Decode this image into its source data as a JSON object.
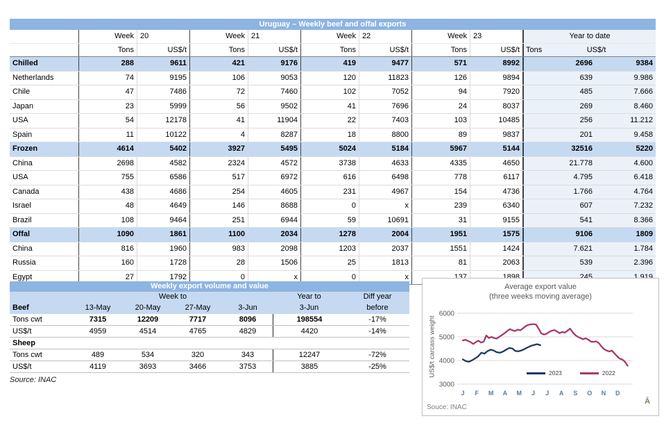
{
  "theme": {
    "bar": "#8DB4E2",
    "hdr": "#C5D9F1",
    "sec": "#C5D9F1",
    "ytd": "#EAF1F9",
    "sepd": "#404040",
    "sepl": "#D9D9D9"
  },
  "table1": {
    "title": "Uruguay – Weekly beef and offal exports",
    "weeks": [
      {
        "word": "Week",
        "num": "20"
      },
      {
        "word": "Week",
        "num": "21"
      },
      {
        "word": "Week",
        "num": "22"
      },
      {
        "word": "Week",
        "num": "23"
      }
    ],
    "ytd_label": "Year to date",
    "col_tons": "Tons",
    "col_usd": "US$/t",
    "rows": [
      {
        "label": "Chilled",
        "bold": true,
        "values": [
          "288",
          "9611",
          "421",
          "9176",
          "419",
          "9477",
          "571",
          "8992",
          "2696",
          "9384"
        ]
      },
      {
        "label": "Netherlands",
        "values": [
          "74",
          "9195",
          "106",
          "9053",
          "120",
          "11823",
          "126",
          "9894",
          "639",
          "9.986"
        ]
      },
      {
        "label": "Chile",
        "values": [
          "47",
          "7486",
          "72",
          "7460",
          "102",
          "7052",
          "94",
          "7920",
          "485",
          "7.666"
        ]
      },
      {
        "label": "Japan",
        "values": [
          "23",
          "5999",
          "56",
          "9502",
          "41",
          "7696",
          "24",
          "8037",
          "269",
          "8.460"
        ]
      },
      {
        "label": "USA",
        "values": [
          "54",
          "12178",
          "41",
          "11904",
          "22",
          "7403",
          "103",
          "10485",
          "256",
          "11.212"
        ]
      },
      {
        "label": "Spain",
        "values": [
          "11",
          "10122",
          "4",
          "8287",
          "18",
          "8800",
          "89",
          "9837",
          "201",
          "9.458"
        ]
      },
      {
        "label": "Frozen",
        "bold": true,
        "values": [
          "4614",
          "5402",
          "3927",
          "5495",
          "5024",
          "5184",
          "5967",
          "5144",
          "32516",
          "5220"
        ]
      },
      {
        "label": "China",
        "values": [
          "2698",
          "4582",
          "2324",
          "4572",
          "3738",
          "4633",
          "4335",
          "4650",
          "21.778",
          "4.600"
        ]
      },
      {
        "label": "USA",
        "values": [
          "755",
          "6586",
          "517",
          "6972",
          "616",
          "6498",
          "778",
          "6117",
          "4.795",
          "6.418"
        ]
      },
      {
        "label": "Canada",
        "values": [
          "438",
          "4686",
          "254",
          "4605",
          "231",
          "4967",
          "154",
          "4736",
          "1.766",
          "4.764"
        ]
      },
      {
        "label": "Israel",
        "values": [
          "48",
          "4649",
          "146",
          "8688",
          "0",
          "x",
          "239",
          "6340",
          "607",
          "7.232"
        ]
      },
      {
        "label": "Brazil",
        "values": [
          "108",
          "9464",
          "251",
          "6944",
          "59",
          "10691",
          "31",
          "9155",
          "541",
          "8.366"
        ]
      },
      {
        "label": "Offal",
        "bold": true,
        "values": [
          "1090",
          "1861",
          "1100",
          "2034",
          "1278",
          "2004",
          "1951",
          "1575",
          "9106",
          "1809"
        ]
      },
      {
        "label": "China",
        "values": [
          "816",
          "1960",
          "983",
          "2098",
          "1203",
          "2037",
          "1551",
          "1424",
          "7.621",
          "1.784"
        ]
      },
      {
        "label": "Russia",
        "values": [
          "160",
          "1728",
          "28",
          "1506",
          "25",
          "1813",
          "81",
          "2063",
          "539",
          "2.396"
        ]
      },
      {
        "label": "Egypt",
        "values": [
          "27",
          "1792",
          "0",
          "x",
          "0",
          "x",
          "137",
          "1898",
          "245",
          "1.919"
        ]
      }
    ]
  },
  "table2": {
    "title": "Weekly export volume and value",
    "week_to": "Week to",
    "year_to": "Year to",
    "diff_year": "Diff year",
    "before": "before",
    "beef_label": "Beef",
    "dates": [
      "13-May",
      "20-May",
      "27-May",
      "3-Jun"
    ],
    "ytd_date": "3-Jun",
    "rows": [
      {
        "label": "Tons cwt",
        "bold_values": true,
        "values": [
          "7315",
          "12209",
          "7717",
          "8096",
          "198554",
          "-17%"
        ]
      },
      {
        "label": "US$/t",
        "values": [
          "4959",
          "4514",
          "4765",
          "4829",
          "4420",
          "-14%"
        ]
      },
      {
        "label": "Sheep",
        "section_label": true,
        "values": [
          "",
          "",
          "",
          "",
          "",
          ""
        ]
      },
      {
        "label": "Tons cwt",
        "values": [
          "489",
          "534",
          "320",
          "343",
          "12247",
          "-72%"
        ]
      },
      {
        "label": "US$/t",
        "values": [
          "4119",
          "3693",
          "3466",
          "3753",
          "3885",
          "-25%"
        ]
      }
    ],
    "source": "Source: INAC"
  },
  "chart_data": {
    "type": "line",
    "title": "Average export  value",
    "subtitle": "(three weeks moving average)",
    "ylabel": "US$/t carcass weight",
    "ylim": [
      3000,
      6000
    ],
    "yticks": [
      3000,
      4000,
      5000,
      6000
    ],
    "x_tick_labels": [
      "J",
      "F",
      "M",
      "A",
      "M",
      "J",
      "J",
      "A",
      "S",
      "O",
      "N",
      "D"
    ],
    "grid": "horizontal",
    "legend_position": "bottom-inside",
    "source_note": "Souce: INAC",
    "series": [
      {
        "name": "2023",
        "color": "#1F3864",
        "x_start": 0,
        "x_end": 5.5,
        "values": [
          4050,
          3970,
          3950,
          4010,
          4090,
          4180,
          4330,
          4290,
          4400,
          4460,
          4420,
          4350,
          4330,
          4380,
          4460,
          4530,
          4510,
          4400,
          4390,
          4430,
          4490,
          4560,
          4620,
          4660,
          4690,
          4650
        ]
      },
      {
        "name": "2022",
        "color": "#A8386B",
        "x_start": 0,
        "x_end": 11.7,
        "values": [
          4850,
          4880,
          4830,
          4780,
          4700,
          4780,
          4840,
          4760,
          4800,
          5060,
          4950,
          5000,
          4950,
          4930,
          5010,
          5080,
          5160,
          5250,
          5330,
          5280,
          5250,
          5310,
          5280,
          5360,
          5450,
          5510,
          5530,
          5540,
          5520,
          5350,
          5150,
          5100,
          5130,
          5210,
          5260,
          5290,
          5230,
          5160,
          5210,
          5180,
          5260,
          5350,
          5200,
          5080,
          5000,
          4950,
          4900,
          4940,
          4880,
          4800,
          4790,
          4810,
          4740,
          4600,
          4480,
          4420,
          4380,
          4420,
          4300,
          4180,
          4080,
          4040,
          3950,
          3780
        ]
      }
    ]
  },
  "corner_mark": "Ā"
}
